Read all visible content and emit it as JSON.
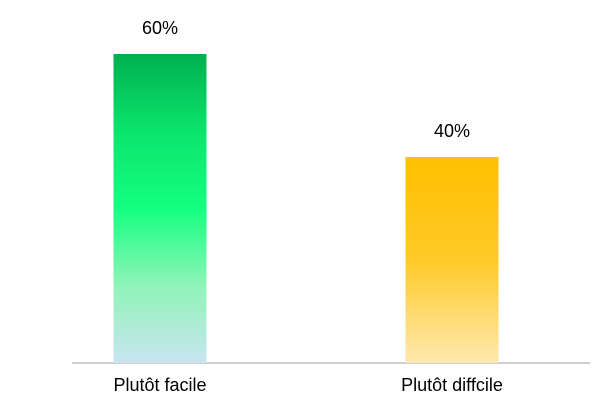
{
  "chart_data": {
    "type": "bar",
    "categories": [
      "Plutôt facile",
      "Plutôt diffcile"
    ],
    "values": [
      60,
      40
    ],
    "value_labels": [
      "60%",
      "40%"
    ],
    "colors": [
      [
        "#00b050",
        "#0be46c",
        "#14ff80",
        "#90f4b8",
        "#c8e4f0"
      ],
      [
        "#ffc000",
        "#ffca28",
        "#ffe8b0"
      ]
    ]
  }
}
